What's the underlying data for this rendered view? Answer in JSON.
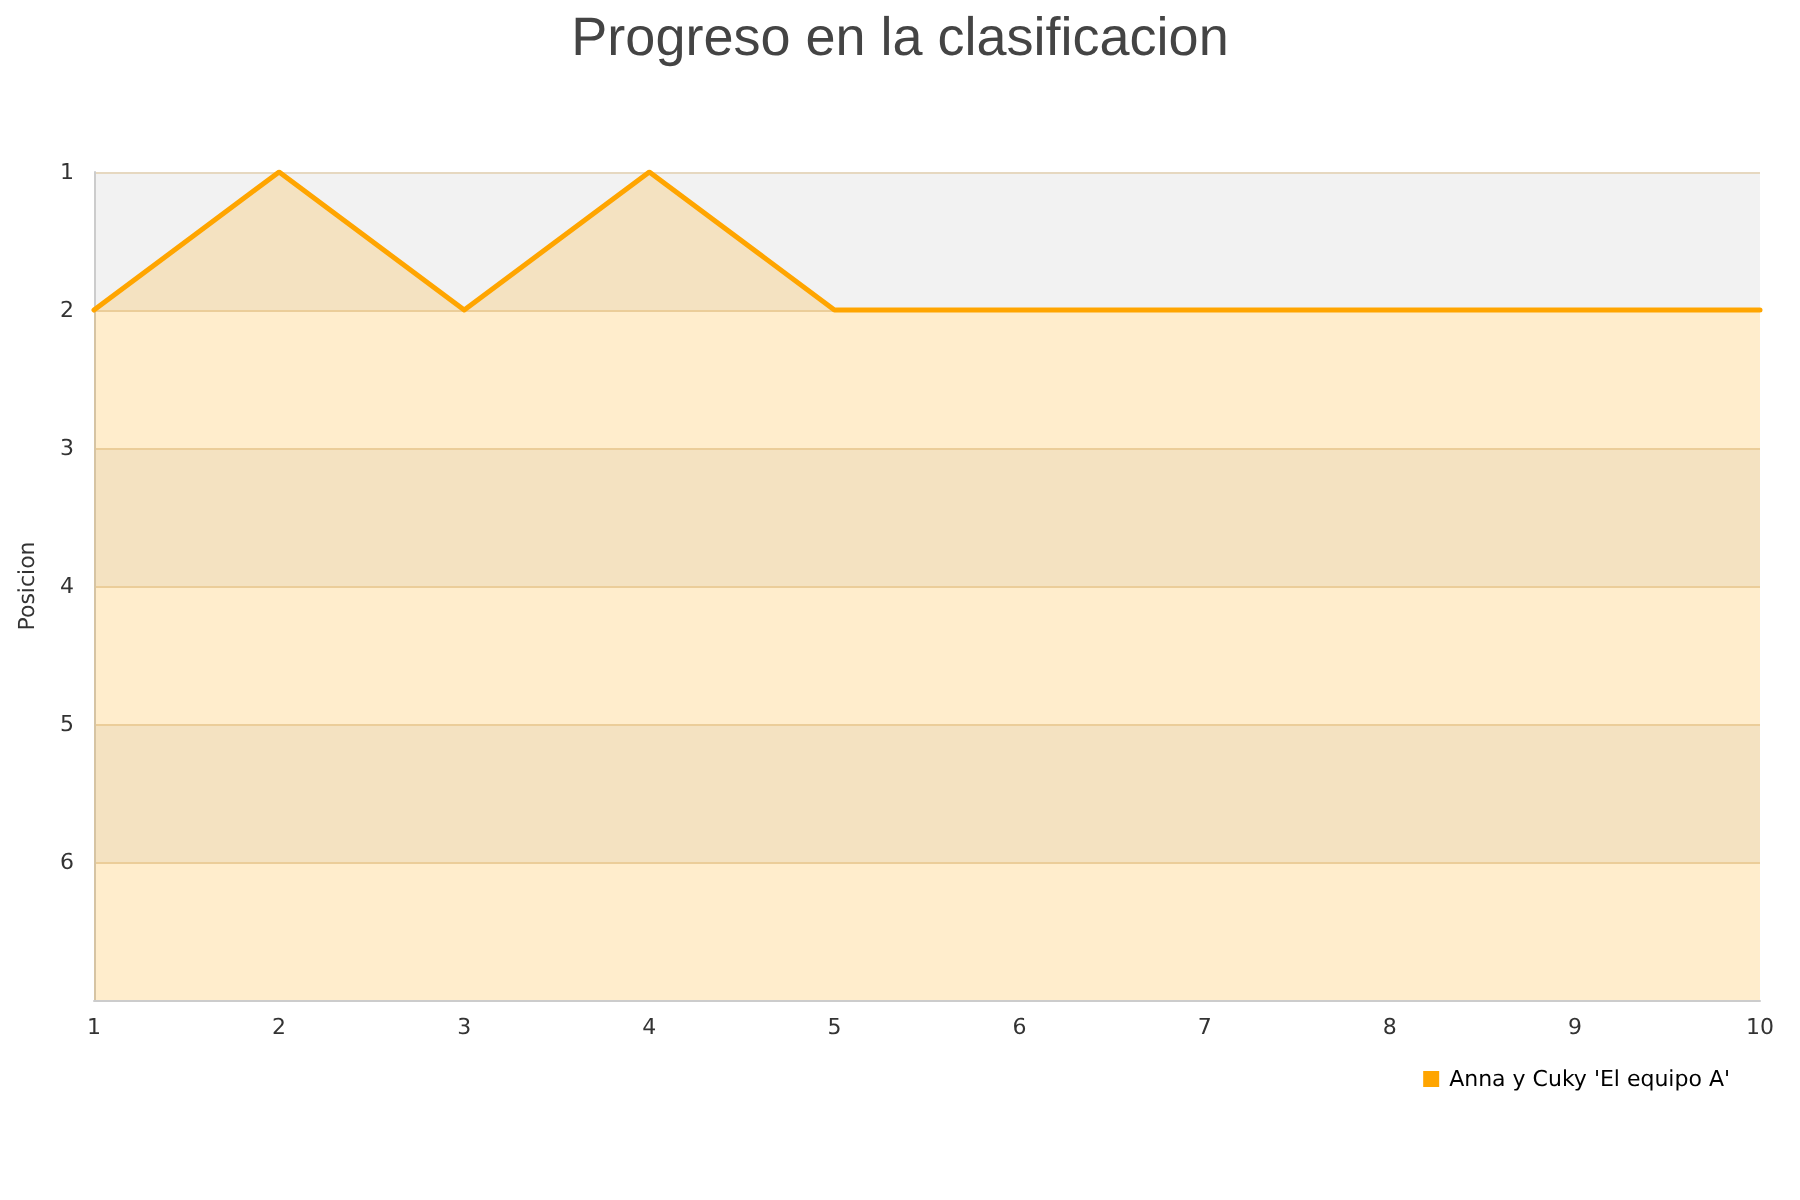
{
  "chart_data": {
    "type": "area",
    "title": "Progreso en la clasificacion",
    "ylabel": "Posicion",
    "x": [
      1,
      2,
      3,
      4,
      5,
      6,
      7,
      8,
      9,
      10
    ],
    "series": [
      {
        "name": "Anna y Cuky 'El equipo A'",
        "color": "#ffa500",
        "values": [
          2,
          1,
          2,
          1,
          2,
          2,
          2,
          2,
          2,
          2
        ]
      }
    ],
    "xlim": [
      1,
      10
    ],
    "xticks": [
      1,
      2,
      3,
      4,
      5,
      6,
      7,
      8,
      9,
      10
    ],
    "ylim": [
      7,
      1
    ],
    "yticks": [
      1,
      2,
      3,
      4,
      5,
      6,
      {
        "value": 7,
        "label": null
      }
    ],
    "grid": "y",
    "legend": "bottom right",
    "marker": "none",
    "line_style": "solid"
  }
}
